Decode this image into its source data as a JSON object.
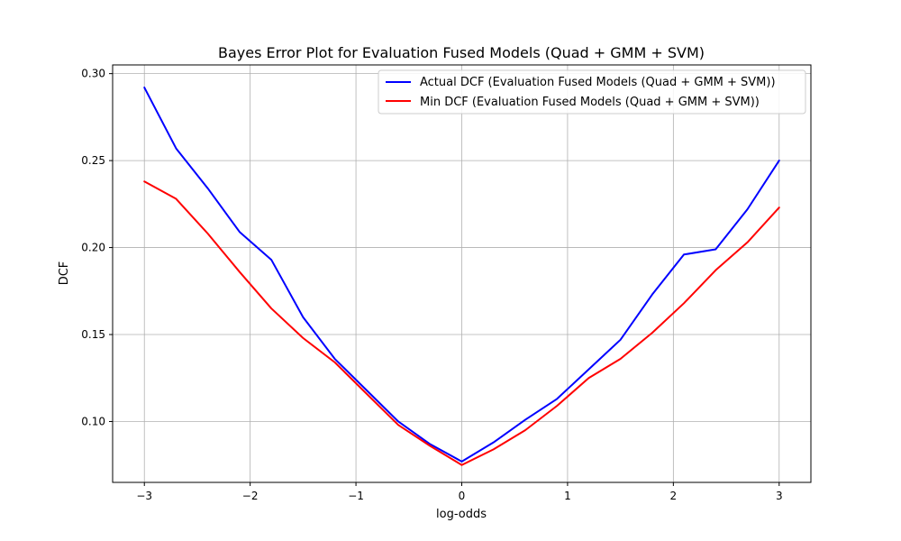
{
  "chart_data": {
    "type": "line",
    "title": "Bayes Error Plot for Evaluation Fused Models (Quad + GMM + SVM)",
    "xlabel": "log-odds",
    "ylabel": "DCF",
    "xlim": [
      -3.3,
      3.3
    ],
    "ylim": [
      0.065,
      0.305
    ],
    "xticks": [
      -3,
      -2,
      -1,
      0,
      1,
      2,
      3
    ],
    "xtick_labels": [
      "−3",
      "−2",
      "−1",
      "0",
      "1",
      "2",
      "3"
    ],
    "yticks": [
      0.1,
      0.15,
      0.2,
      0.25,
      0.3
    ],
    "ytick_labels": [
      "0.10",
      "0.15",
      "0.20",
      "0.25",
      "0.30"
    ],
    "grid": true,
    "legend_position": "top-right",
    "x": [
      -3.0,
      -2.7,
      -2.4,
      -2.1,
      -1.8,
      -1.5,
      -1.2,
      -0.9,
      -0.6,
      -0.3,
      0.0,
      0.3,
      0.6,
      0.9,
      1.2,
      1.5,
      1.8,
      2.1,
      2.4,
      2.7,
      3.0
    ],
    "series": [
      {
        "name": "Actual DCF (Evaluation Fused Models (Quad + GMM + SVM))",
        "color": "#0000ff",
        "values": [
          0.292,
          0.257,
          0.234,
          0.209,
          0.193,
          0.16,
          0.136,
          0.118,
          0.1,
          0.087,
          0.077,
          0.088,
          0.101,
          0.113,
          0.13,
          0.147,
          0.173,
          0.196,
          0.199,
          0.222,
          0.25
        ]
      },
      {
        "name": "Min DCF (Evaluation Fused Models (Quad + GMM + SVM))",
        "color": "#ff0000",
        "values": [
          0.238,
          0.228,
          0.208,
          0.186,
          0.165,
          0.148,
          0.134,
          0.116,
          0.098,
          0.086,
          0.075,
          0.084,
          0.095,
          0.109,
          0.125,
          0.136,
          0.151,
          0.168,
          0.187,
          0.203,
          0.223
        ]
      }
    ]
  }
}
